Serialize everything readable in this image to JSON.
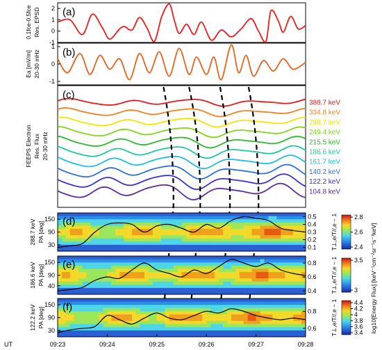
{
  "figure": {
    "ut_label": "UT",
    "time_ticks": [
      "09:23",
      "09:24",
      "09:25",
      "09:26",
      "09:27",
      "09:28"
    ],
    "colorbar_label": "log10[Energy Flux] [keV⁻¹cm⁻²sr⁻¹s⁻¹keV]"
  },
  "chart_data": [
    {
      "id": "a",
      "letter": "(a)",
      "type": "line",
      "ylabel": [
        "0.1fce-0.5fce",
        "Res. EPSD"
      ],
      "ylim": [
        -1,
        2.5
      ],
      "yticks": [
        -1,
        0,
        1,
        2
      ],
      "color": "#ee1c1c",
      "x": [
        0,
        0.05,
        0.1,
        0.14,
        0.18,
        0.21,
        0.25,
        0.27,
        0.3,
        0.33,
        0.36,
        0.39,
        0.42,
        0.45,
        0.47,
        0.49,
        0.52,
        0.55,
        0.58,
        0.62,
        0.66,
        0.7,
        0.74,
        0.78,
        0.81,
        0.84,
        0.86,
        0.89,
        0.91,
        0.94,
        0.97,
        1
      ],
      "y": [
        0.8,
        1.0,
        -0.3,
        1.5,
        0.3,
        -0.7,
        0.2,
        0.4,
        0.1,
        1.2,
        0.3,
        -0.9,
        1.3,
        2.4,
        1.0,
        -0.2,
        0.6,
        -0.3,
        0.8,
        -0.8,
        0.1,
        -0.5,
        0.2,
        1.1,
        0.0,
        -0.9,
        1.8,
        0.9,
        -0.1,
        1.3,
        0.2,
        0.5
      ]
    },
    {
      "id": "b",
      "letter": "(b)",
      "type": "line",
      "ylabel": [
        "Ea [mV/m]",
        "20-30 mHz"
      ],
      "ylim": [
        -1.2,
        1.2
      ],
      "yticks": [
        -1,
        0,
        1
      ],
      "color": "#e6641e",
      "x": [
        0,
        0.04,
        0.09,
        0.13,
        0.17,
        0.21,
        0.25,
        0.29,
        0.33,
        0.37,
        0.41,
        0.45,
        0.49,
        0.53,
        0.56,
        0.6,
        0.63,
        0.66,
        0.7,
        0.73,
        0.76,
        0.79,
        0.83,
        0.87,
        0.91,
        0.95,
        1
      ],
      "y": [
        0.3,
        -0.5,
        0.6,
        -0.6,
        0.5,
        -0.3,
        0.3,
        -0.9,
        0.6,
        -0.5,
        0.7,
        -0.7,
        0.9,
        -0.6,
        0.4,
        -0.6,
        0.4,
        -0.9,
        1.1,
        -0.5,
        0.5,
        -0.7,
        0.2,
        -0.4,
        0.3,
        -0.3,
        0.1
      ]
    },
    {
      "id": "c",
      "letter": "(c)",
      "type": "line",
      "ylabel": [
        "FEEPS Electron",
        "Res. Flux",
        "20-30 mHz"
      ],
      "energies": [
        {
          "label": "388.7 keV",
          "color": "#e41a1c"
        },
        {
          "label": "334.8 keV",
          "color": "#f57f20"
        },
        {
          "label": "288.7 keV",
          "color": "#f2e600"
        },
        {
          "label": "249.4 keV",
          "color": "#84d31f"
        },
        {
          "label": "215.5 keV",
          "color": "#2dbb2d"
        },
        {
          "label": "186.6 keV",
          "color": "#1fc8a0"
        },
        {
          "label": "161.7 keV",
          "color": "#1fbde6"
        },
        {
          "label": "140.2 keV",
          "color": "#2c6fe6"
        },
        {
          "label": "122.2 keV",
          "color": "#3c2fd6"
        },
        {
          "label": "104.8 keV",
          "color": "#5a2aa8"
        }
      ],
      "dispersion_lines": [
        {
          "t_top": 0.427,
          "t_bottom": 0.467
        },
        {
          "t_top": 0.53,
          "t_bottom": 0.575
        },
        {
          "t_top": 0.655,
          "t_bottom": 0.695
        },
        {
          "t_top": 0.77,
          "t_bottom": 0.81
        }
      ]
    },
    {
      "id": "d",
      "letter": "(d)",
      "type": "heatmap",
      "ylabel": [
        "288.7 keV",
        "PA [deg]"
      ],
      "ylim": [
        0,
        180
      ],
      "yticks": [
        30,
        90,
        150
      ],
      "right_label": "T⊥,e/T//,e − 1",
      "right_ticks": [
        0.1,
        0.2,
        0.3,
        0.4,
        0.5
      ],
      "right_lim": [
        0.05,
        0.55
      ],
      "cbar_ticks": [
        "2.4",
        "2.6",
        "2.8"
      ],
      "ratio": {
        "x": [
          0.0,
          0.05,
          0.1,
          0.15,
          0.2,
          0.25,
          0.3,
          0.35,
          0.4,
          0.45,
          0.5,
          0.55,
          0.6,
          0.65,
          0.7,
          0.75,
          0.8,
          0.85,
          0.9,
          0.95,
          1.0
        ],
        "y": [
          0.1,
          0.12,
          0.15,
          0.3,
          0.4,
          0.42,
          0.4,
          0.3,
          0.38,
          0.4,
          0.35,
          0.3,
          0.4,
          0.35,
          0.45,
          0.5,
          0.48,
          0.45,
          0.35,
          0.32,
          0.3
        ]
      }
    },
    {
      "id": "e",
      "letter": "(e)",
      "type": "heatmap",
      "ylabel": [
        "186.6 keV",
        "PA [deg]"
      ],
      "ylim": [
        0,
        180
      ],
      "yticks": [
        40,
        90,
        150
      ],
      "right_label": "T⊥,e/T//,e − 1",
      "right_ticks": [
        0.4,
        0.6,
        0.8
      ],
      "right_lim": [
        0.35,
        0.9
      ],
      "cbar_ticks": [
        "3",
        "3.5"
      ],
      "ratio": {
        "x": [
          0.0,
          0.05,
          0.1,
          0.15,
          0.2,
          0.25,
          0.3,
          0.35,
          0.4,
          0.45,
          0.5,
          0.55,
          0.6,
          0.65,
          0.7,
          0.75,
          0.8,
          0.85,
          0.9,
          0.95,
          1.0
        ],
        "y": [
          0.4,
          0.42,
          0.45,
          0.55,
          0.6,
          0.58,
          0.7,
          0.8,
          0.7,
          0.65,
          0.6,
          0.7,
          0.65,
          0.75,
          0.85,
          0.8,
          0.75,
          0.8,
          0.7,
          0.65,
          0.62
        ]
      }
    },
    {
      "id": "f",
      "letter": "(f)",
      "type": "heatmap",
      "ylabel": [
        "122.2 keV",
        "PA [deg]"
      ],
      "ylim": [
        0,
        180
      ],
      "yticks": [
        30,
        90,
        150
      ],
      "right_label": "T⊥,e/T//,e − 1",
      "right_ticks": [
        0.6,
        0.8
      ],
      "right_lim": [
        0.5,
        0.95
      ],
      "cbar_ticks": [
        "3.4",
        "3.6",
        "3.8",
        "4",
        "4.2",
        "4.4"
      ],
      "ratio": {
        "x": [
          0.0,
          0.05,
          0.1,
          0.15,
          0.2,
          0.25,
          0.3,
          0.35,
          0.4,
          0.45,
          0.5,
          0.55,
          0.6,
          0.65,
          0.7,
          0.75,
          0.8,
          0.85,
          0.9,
          0.95,
          1.0
        ],
        "y": [
          0.55,
          0.58,
          0.6,
          0.62,
          0.75,
          0.7,
          0.65,
          0.72,
          0.78,
          0.72,
          0.7,
          0.75,
          0.8,
          0.78,
          0.83,
          0.8,
          0.75,
          0.72,
          0.7,
          0.72,
          0.7
        ]
      }
    }
  ]
}
